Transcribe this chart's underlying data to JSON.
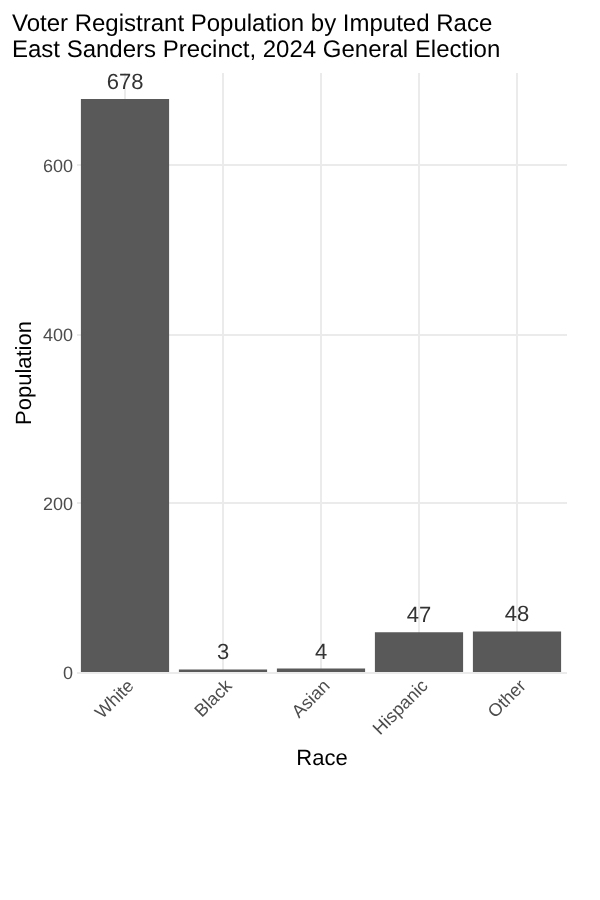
{
  "chart_data": {
    "type": "bar",
    "title": "Voter Registrant Population by Imputed Race",
    "subtitle": "East Sanders Precinct,  2024 General Election",
    "xlabel": "Race",
    "ylabel": "Population",
    "categories": [
      "White",
      "Black",
      "Asian",
      "Hispanic",
      "Other"
    ],
    "values": [
      678,
      3,
      4,
      47,
      48
    ],
    "color": "#595959",
    "ylim": [
      0,
      710
    ],
    "yticks": [
      0,
      200,
      400,
      600
    ],
    "grid": true,
    "data_labels": true
  }
}
